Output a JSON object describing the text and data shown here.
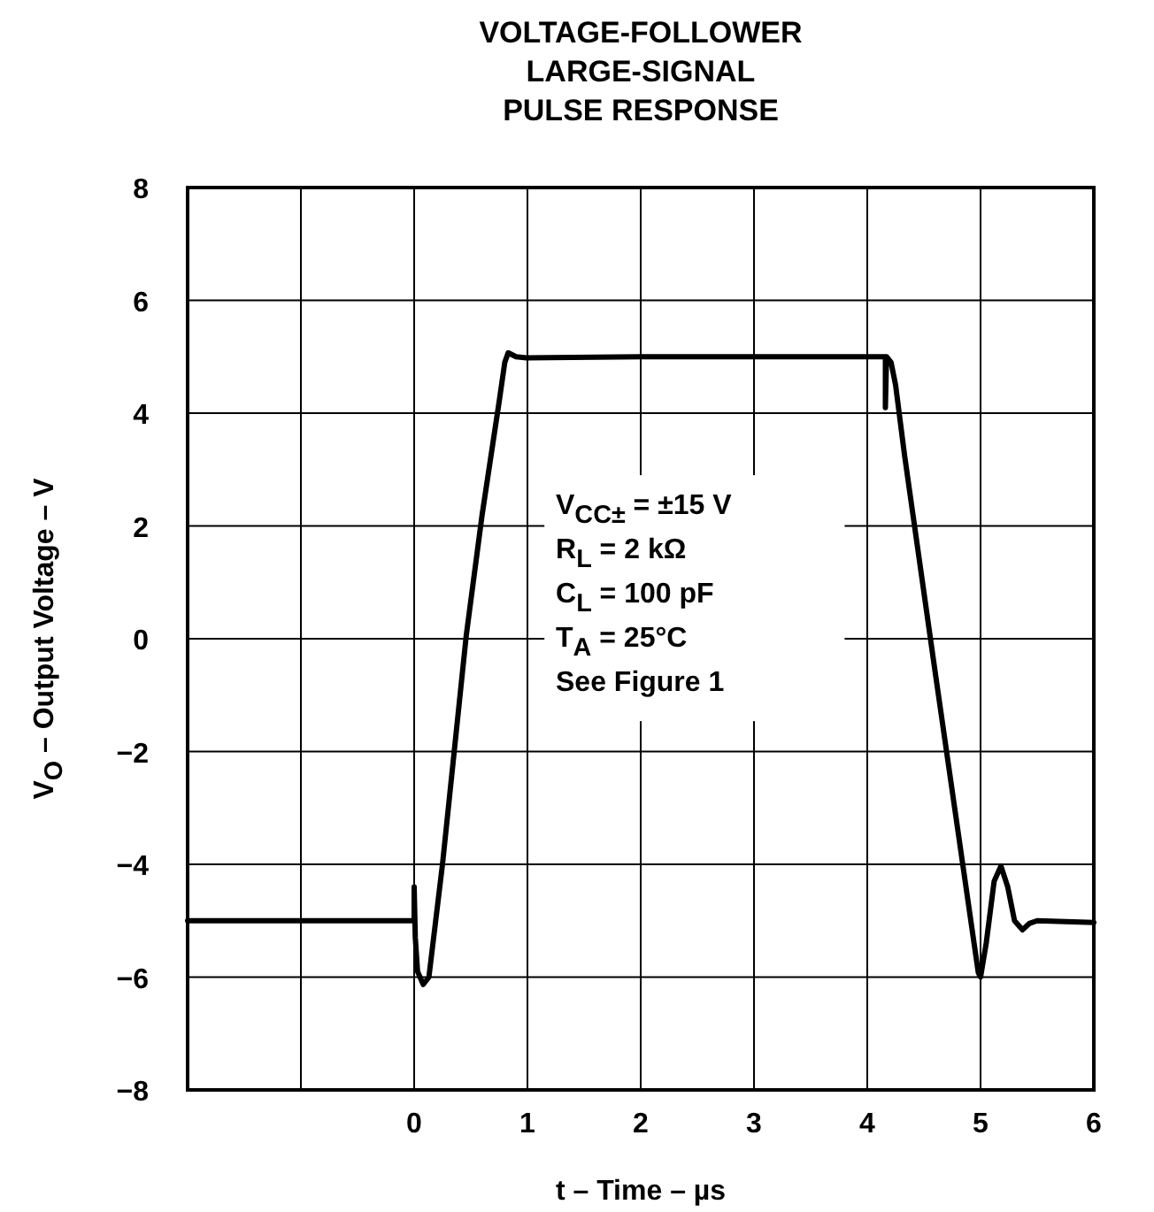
{
  "chart_data": {
    "type": "line",
    "title": "VOLTAGE-FOLLOWER\nLARGE-SIGNAL\nPULSE RESPONSE",
    "xlabel": "t – Time – µs",
    "ylabel": "V$_{O}$ – Output Voltage – V",
    "annotations": [
      "V$_{CC±}$ = ±15 V\nR$_{L}$ = 2 kΩ\nC$_{L}$ = 100 pF\nT$_{A}$ = 25°C\nSee Figure 1"
    ],
    "xlim": [
      -2,
      6
    ],
    "xticks": [
      {
        "value": -2,
        "label": null
      },
      {
        "value": -1,
        "label": null
      },
      0,
      1,
      2,
      3,
      4,
      5,
      6
    ],
    "ylim": [
      -8,
      8
    ],
    "yticks": [
      {
        "value": -8,
        "label": "−8"
      },
      {
        "value": -6,
        "label": "−6"
      },
      {
        "value": -4,
        "label": "−4"
      },
      {
        "value": -2,
        "label": "−2"
      },
      0,
      2,
      4,
      6,
      8
    ],
    "grid": true,
    "marker": "none",
    "line_style": "solid",
    "series": [
      {
        "color": "#000000",
        "x": [
          -2,
          -1,
          0,
          0,
          0.01,
          0.03,
          0.08,
          0.13,
          0.25,
          0.46,
          0.6,
          0.75,
          0.8,
          0.83,
          0.9,
          0.99,
          2,
          3,
          4,
          4.15,
          4.16,
          4.16,
          4.17,
          4.21,
          4.25,
          4.33,
          4.6,
          4.98,
          5.0,
          5.05,
          5.12,
          5.18,
          5.24,
          5.3,
          5.37,
          5.43,
          5.5,
          6
        ],
        "values": [
          -5,
          -5,
          -5,
          -4.4,
          -5.3,
          -5.9,
          -6.13,
          -6.0,
          -4.0,
          0.06,
          2.2,
          4.2,
          4.9,
          5.07,
          5.0,
          4.98,
          5.0,
          5.0,
          5.0,
          5.0,
          5.0,
          4.1,
          5.0,
          4.9,
          4.5,
          3.24,
          -0.6,
          -5.92,
          -6.0,
          -5.4,
          -4.3,
          -4.03,
          -4.4,
          -5.0,
          -5.16,
          -5.05,
          -5.0,
          -5.03
        ]
      }
    ]
  }
}
